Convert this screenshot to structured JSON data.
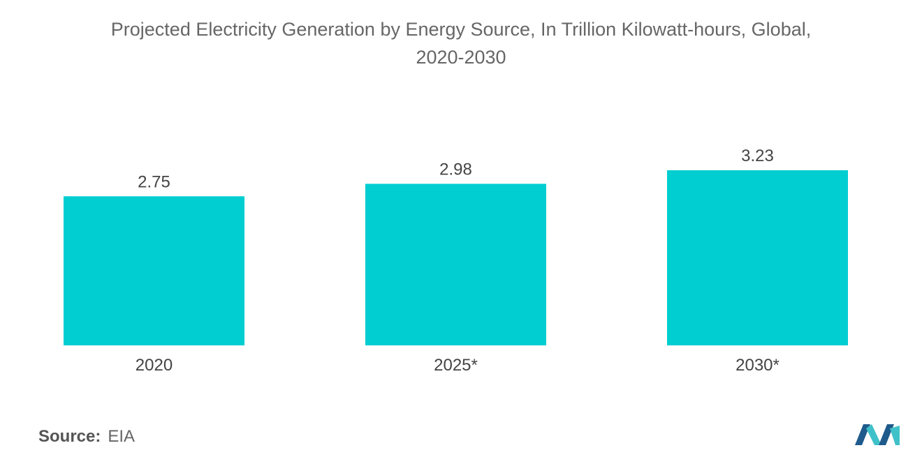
{
  "title_line1": "Projected Electricity Generation by Energy Source, In Trillion Kilowatt-hours, Global,",
  "title_line2": "2020-2030",
  "source_label": "Source:",
  "source_value": "EIA",
  "colors": {
    "bar": "#00CED1",
    "logo_dark": "#1F5A8C",
    "logo_light": "#3FC1C9"
  },
  "logo_icon": "mordor-logo-icon",
  "chart_data": {
    "type": "bar",
    "title": "Projected Electricity Generation by Energy Source, In Trillion Kilowatt-hours, Global, 2020-2030",
    "categories": [
      "2020",
      "2025*",
      "2030*"
    ],
    "values": [
      2.75,
      2.98,
      3.23
    ],
    "value_labels": [
      "2.75",
      "2.98",
      "3.23"
    ],
    "xlabel": "",
    "ylabel": "",
    "ylim": [
      0,
      3.23
    ],
    "grid": false,
    "legend": "none",
    "data_labels": "above-bars"
  }
}
